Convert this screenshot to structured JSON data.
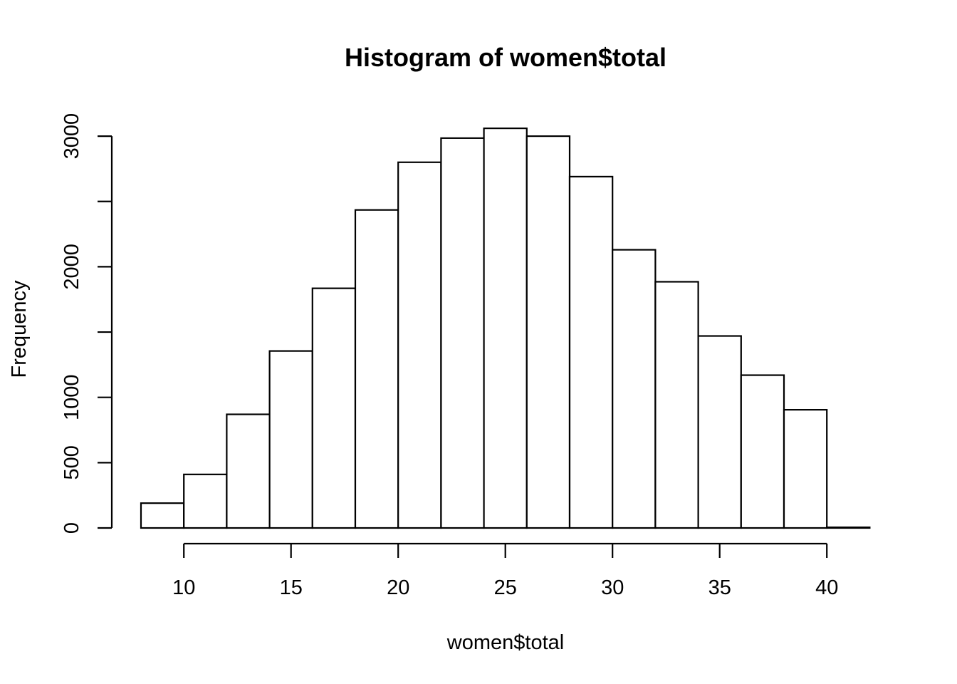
{
  "chart_data": {
    "type": "bar",
    "title": "Histogram of women$total",
    "xlabel": "women$total",
    "ylabel": "Frequency",
    "bins": [
      {
        "x0": 8,
        "x1": 10,
        "count": 190
      },
      {
        "x0": 10,
        "x1": 12,
        "count": 410
      },
      {
        "x0": 12,
        "x1": 14,
        "count": 870
      },
      {
        "x0": 14,
        "x1": 16,
        "count": 1355
      },
      {
        "x0": 16,
        "x1": 18,
        "count": 1835
      },
      {
        "x0": 18,
        "x1": 20,
        "count": 2435
      },
      {
        "x0": 20,
        "x1": 22,
        "count": 2800
      },
      {
        "x0": 22,
        "x1": 24,
        "count": 2985
      },
      {
        "x0": 24,
        "x1": 26,
        "count": 3060
      },
      {
        "x0": 26,
        "x1": 28,
        "count": 3000
      },
      {
        "x0": 28,
        "x1": 30,
        "count": 2690
      },
      {
        "x0": 30,
        "x1": 32,
        "count": 2130
      },
      {
        "x0": 32,
        "x1": 34,
        "count": 1885
      },
      {
        "x0": 34,
        "x1": 36,
        "count": 1470
      },
      {
        "x0": 36,
        "x1": 38,
        "count": 1170
      },
      {
        "x0": 38,
        "x1": 40,
        "count": 905
      },
      {
        "x0": 40,
        "x1": 42,
        "count": 5
      }
    ],
    "xlim": [
      8,
      42
    ],
    "ylim": [
      0,
      3060
    ],
    "x_ticks": [
      10,
      15,
      20,
      25,
      30,
      35,
      40
    ],
    "y_ticks": [
      0,
      500,
      1000,
      1500,
      2000,
      2500,
      3000
    ],
    "y_tick_labels": [
      "0",
      "500",
      "1000",
      "",
      "2000",
      "",
      "3000"
    ],
    "grid": false,
    "legend": "none",
    "bar_fill": "#ffffff",
    "bar_stroke": "#000000"
  }
}
